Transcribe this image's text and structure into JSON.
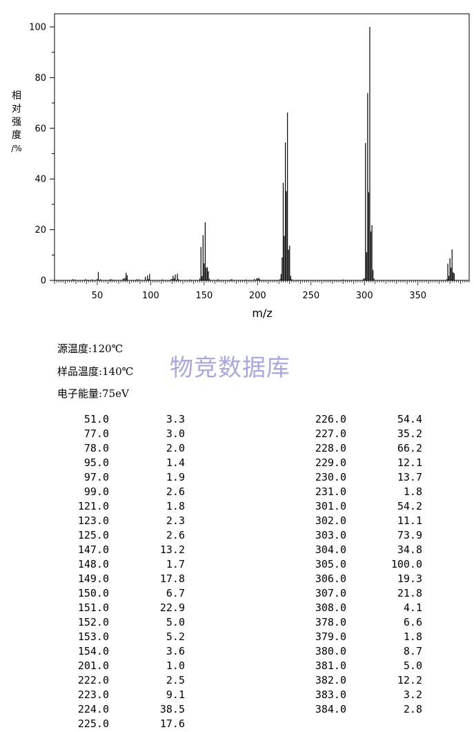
{
  "chart_data": {
    "type": "bar",
    "xlabel": "m/z",
    "ylabel": "相对强度/%",
    "xticks": [
      50,
      100,
      150,
      200,
      250,
      300,
      350
    ],
    "yticks": [
      0,
      20,
      40,
      60,
      80,
      100
    ],
    "xlim": [
      10,
      398
    ],
    "ylim": [
      0,
      100
    ],
    "minor_peaks": [
      [
        27,
        0.5
      ],
      [
        29,
        0.4
      ],
      [
        39,
        0.6
      ],
      [
        41,
        0.3
      ],
      [
        45,
        0.4
      ],
      [
        50,
        0.6
      ],
      [
        53,
        0.5
      ],
      [
        62,
        0.4
      ],
      [
        63,
        0.5
      ],
      [
        65,
        0.3
      ],
      [
        74,
        0.7
      ],
      [
        75,
        0.8
      ],
      [
        76,
        1.0
      ],
      [
        87,
        0.5
      ],
      [
        89,
        0.5
      ],
      [
        98,
        0.6
      ],
      [
        111,
        0.4
      ],
      [
        119,
        0.5
      ],
      [
        120,
        0.6
      ],
      [
        122,
        0.8
      ],
      [
        126,
        0.5
      ],
      [
        137,
        0.4
      ],
      [
        146,
        0.8
      ],
      [
        155,
        0.7
      ],
      [
        163,
        0.5
      ],
      [
        175,
        0.4
      ],
      [
        176,
        0.5
      ],
      [
        189,
        0.4
      ],
      [
        197,
        0.6
      ],
      [
        199,
        0.8
      ],
      [
        200,
        0.8
      ],
      [
        202,
        0.5
      ],
      [
        221,
        0.6
      ],
      [
        232,
        0.5
      ],
      [
        280,
        0.4
      ],
      [
        299,
        0.7
      ],
      [
        300,
        0.9
      ],
      [
        309,
        0.8
      ],
      [
        377,
        0.5
      ]
    ],
    "peaks": [
      [
        "51.0",
        "3.3"
      ],
      [
        "77.0",
        "3.0"
      ],
      [
        "78.0",
        "2.0"
      ],
      [
        "95.0",
        "1.4"
      ],
      [
        "97.0",
        "1.9"
      ],
      [
        "99.0",
        "2.6"
      ],
      [
        "121.0",
        "1.8"
      ],
      [
        "123.0",
        "2.3"
      ],
      [
        "125.0",
        "2.6"
      ],
      [
        "147.0",
        "13.2"
      ],
      [
        "148.0",
        "1.7"
      ],
      [
        "149.0",
        "17.8"
      ],
      [
        "150.0",
        "6.7"
      ],
      [
        "151.0",
        "22.9"
      ],
      [
        "152.0",
        "5.0"
      ],
      [
        "153.0",
        "5.2"
      ],
      [
        "154.0",
        "3.6"
      ],
      [
        "201.0",
        "1.0"
      ],
      [
        "222.0",
        "2.5"
      ],
      [
        "223.0",
        "9.1"
      ],
      [
        "224.0",
        "38.5"
      ],
      [
        "225.0",
        "17.6"
      ],
      [
        "226.0",
        "54.4"
      ],
      [
        "227.0",
        "35.2"
      ],
      [
        "228.0",
        "66.2"
      ],
      [
        "229.0",
        "12.1"
      ],
      [
        "230.0",
        "13.7"
      ],
      [
        "231.0",
        "1.8"
      ],
      [
        "301.0",
        "54.2"
      ],
      [
        "302.0",
        "11.1"
      ],
      [
        "303.0",
        "73.9"
      ],
      [
        "304.0",
        "34.8"
      ],
      [
        "305.0",
        "100.0"
      ],
      [
        "306.0",
        "19.3"
      ],
      [
        "307.0",
        "21.8"
      ],
      [
        "308.0",
        "4.1"
      ],
      [
        "378.0",
        "6.6"
      ],
      [
        "379.0",
        "1.8"
      ],
      [
        "380.0",
        "8.7"
      ],
      [
        "381.0",
        "5.0"
      ],
      [
        "382.0",
        "12.2"
      ],
      [
        "383.0",
        "3.2"
      ],
      [
        "384.0",
        "2.8"
      ]
    ]
  },
  "ylabel_chars": [
    "相",
    "对",
    "强",
    "度",
    "/%"
  ],
  "conditions": {
    "source_temp": "源温度:120℃",
    "sample_temp": "样品温度:140℃",
    "electron_energy": "电子能量:75eV"
  },
  "watermark": "物竞数据库",
  "colors": {
    "bars": "#000000",
    "axes": "#000000",
    "watermark": "#a8a8dc"
  }
}
